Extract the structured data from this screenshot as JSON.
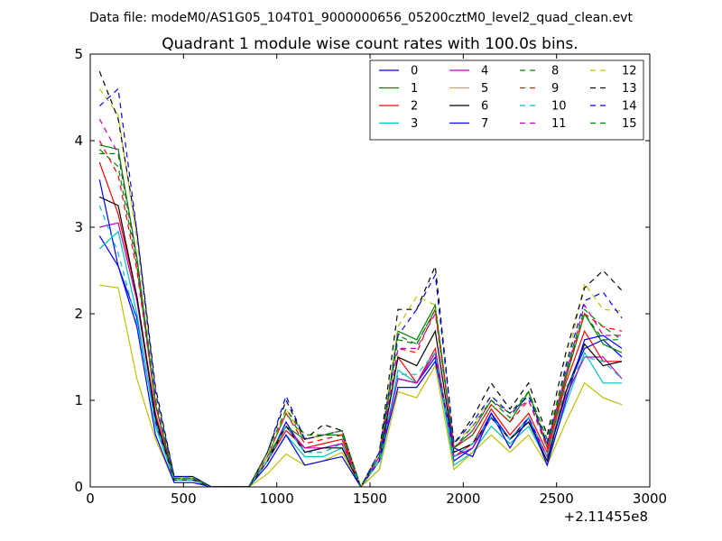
{
  "figure": {
    "suptitle": "Data file: modeM0/AS1G05_104T01_9000000656_05200cztM0_level2_quad_clean.evt"
  },
  "chart_data": {
    "type": "line",
    "title": "Quadrant 1 module wise count rates with 100.0s bins.",
    "xlabel": "",
    "ylabel": "",
    "x_offset_label": "+2.11455e8",
    "xlim": [
      0,
      3000
    ],
    "ylim": [
      0,
      5
    ],
    "xticks": [
      0,
      500,
      1000,
      1500,
      2000,
      2500,
      3000
    ],
    "yticks": [
      0,
      1,
      2,
      3,
      4,
      5
    ],
    "grid": false,
    "legend_position": "top-right",
    "legend_columns": 4,
    "x": [
      50,
      150,
      250,
      350,
      450,
      550,
      650,
      750,
      850,
      950,
      1050,
      1150,
      1250,
      1350,
      1450,
      1550,
      1650,
      1750,
      1850,
      1950,
      2050,
      2150,
      2250,
      2350,
      2450,
      2550,
      2650,
      2750,
      2850
    ],
    "series": [
      {
        "name": "0",
        "color": "#0000ff",
        "dash": false,
        "values": [
          2.9,
          2.55,
          1.95,
          0.75,
          0.08,
          0.08,
          0.0,
          0.0,
          0.0,
          0.3,
          0.75,
          0.4,
          0.45,
          0.5,
          0.0,
          0.35,
          1.25,
          1.2,
          1.5,
          0.3,
          0.45,
          0.85,
          0.55,
          0.8,
          0.35,
          1.1,
          1.6,
          1.7,
          1.5
        ]
      },
      {
        "name": "1",
        "color": "#008000",
        "dash": false,
        "values": [
          3.95,
          3.9,
          2.65,
          0.95,
          0.08,
          0.08,
          0.0,
          0.0,
          0.0,
          0.35,
          0.7,
          0.55,
          0.6,
          0.6,
          0.0,
          0.35,
          1.8,
          1.7,
          2.1,
          0.45,
          0.6,
          0.95,
          0.75,
          1.1,
          0.45,
          1.25,
          2.0,
          1.65,
          1.55
        ]
      },
      {
        "name": "2",
        "color": "#ff0000",
        "dash": false,
        "values": [
          3.75,
          3.15,
          2.2,
          0.85,
          0.08,
          0.08,
          0.0,
          0.0,
          0.0,
          0.3,
          0.65,
          0.45,
          0.5,
          0.55,
          0.0,
          0.3,
          1.5,
          1.2,
          1.6,
          0.35,
          0.5,
          0.9,
          0.6,
          0.85,
          0.4,
          1.2,
          1.8,
          1.45,
          1.45
        ]
      },
      {
        "name": "3",
        "color": "#00bfbf",
        "dash": false,
        "values": [
          2.75,
          2.95,
          2.0,
          0.7,
          0.08,
          0.08,
          0.0,
          0.0,
          0.0,
          0.25,
          0.6,
          0.35,
          0.35,
          0.45,
          0.0,
          0.2,
          1.35,
          1.2,
          1.55,
          0.25,
          0.4,
          0.7,
          0.5,
          0.7,
          0.3,
          0.95,
          1.55,
          1.2,
          1.2
        ]
      },
      {
        "name": "4",
        "color": "#bf00bf",
        "dash": false,
        "values": [
          3.0,
          3.05,
          2.15,
          0.8,
          0.08,
          0.08,
          0.0,
          0.0,
          0.0,
          0.3,
          0.7,
          0.45,
          0.45,
          0.5,
          0.0,
          0.3,
          1.25,
          1.2,
          1.55,
          0.35,
          0.45,
          0.8,
          0.55,
          0.75,
          0.35,
          1.05,
          1.5,
          1.5,
          1.25
        ]
      },
      {
        "name": "5",
        "color": "#bfbf00",
        "dash": false,
        "values": [
          2.33,
          2.3,
          1.25,
          0.55,
          0.05,
          0.05,
          0.0,
          0.0,
          0.0,
          0.15,
          0.38,
          0.25,
          0.3,
          0.4,
          0.0,
          0.2,
          1.1,
          1.03,
          1.4,
          0.2,
          0.4,
          0.6,
          0.4,
          0.6,
          0.25,
          0.75,
          1.2,
          1.03,
          0.95
        ]
      },
      {
        "name": "6",
        "color": "#000000",
        "dash": false,
        "values": [
          3.35,
          3.25,
          2.2,
          0.8,
          0.08,
          0.08,
          0.0,
          0.0,
          0.0,
          0.3,
          0.7,
          0.4,
          0.45,
          0.45,
          0.0,
          0.3,
          1.5,
          1.4,
          1.8,
          0.4,
          0.5,
          0.8,
          0.55,
          0.75,
          0.3,
          1.1,
          1.65,
          1.4,
          1.45
        ]
      },
      {
        "name": "7",
        "color": "#0000ff",
        "dash": false,
        "values": [
          3.55,
          2.55,
          1.85,
          0.6,
          0.05,
          0.05,
          0.0,
          0.0,
          0.0,
          0.25,
          0.6,
          0.25,
          0.3,
          0.35,
          0.0,
          0.3,
          1.15,
          1.15,
          1.45,
          0.45,
          0.35,
          0.85,
          0.45,
          0.8,
          0.25,
          1.0,
          1.7,
          1.75,
          1.6
        ]
      },
      {
        "name": "8",
        "color": "#008000",
        "dash": true,
        "values": [
          3.9,
          3.7,
          2.55,
          0.95,
          0.1,
          0.1,
          0.0,
          0.0,
          0.0,
          0.35,
          0.85,
          0.55,
          0.6,
          0.65,
          0.0,
          0.35,
          1.75,
          1.65,
          2.05,
          0.45,
          0.65,
          1.0,
          0.8,
          1.1,
          0.5,
          1.3,
          2.0,
          1.7,
          1.7
        ]
      },
      {
        "name": "9",
        "color": "#ff0000",
        "dash": true,
        "values": [
          4.0,
          3.6,
          2.5,
          0.95,
          0.1,
          0.1,
          0.0,
          0.0,
          0.0,
          0.35,
          0.85,
          0.5,
          0.55,
          0.6,
          0.0,
          0.35,
          1.6,
          1.55,
          2.05,
          0.45,
          0.6,
          0.95,
          0.75,
          1.0,
          0.45,
          1.3,
          2.0,
          1.85,
          1.8
        ]
      },
      {
        "name": "10",
        "color": "#00bfbf",
        "dash": true,
        "values": [
          3.25,
          2.7,
          1.9,
          0.75,
          0.08,
          0.08,
          0.0,
          0.0,
          0.0,
          0.3,
          0.7,
          0.4,
          0.4,
          0.5,
          0.0,
          0.3,
          1.3,
          1.3,
          1.55,
          0.35,
          0.5,
          0.8,
          0.55,
          0.8,
          0.35,
          1.15,
          1.5,
          1.45,
          1.25
        ]
      },
      {
        "name": "11",
        "color": "#bf00bf",
        "dash": true,
        "values": [
          4.25,
          3.85,
          2.6,
          0.95,
          0.1,
          0.1,
          0.0,
          0.0,
          0.0,
          0.35,
          0.9,
          0.55,
          0.6,
          0.65,
          0.0,
          0.35,
          1.6,
          1.6,
          2.0,
          0.45,
          0.65,
          1.0,
          0.85,
          1.0,
          0.5,
          1.3,
          2.1,
          1.75,
          1.75
        ]
      },
      {
        "name": "12",
        "color": "#bfbf00",
        "dash": true,
        "values": [
          4.6,
          4.3,
          2.85,
          1.05,
          0.1,
          0.1,
          0.0,
          0.0,
          0.0,
          0.35,
          0.9,
          0.55,
          0.6,
          0.65,
          0.0,
          0.4,
          1.85,
          2.2,
          2.1,
          0.5,
          0.7,
          1.05,
          0.85,
          1.1,
          0.55,
          1.4,
          2.35,
          2.05,
          2.03
        ]
      },
      {
        "name": "13",
        "color": "#000000",
        "dash": true,
        "values": [
          4.8,
          4.25,
          2.95,
          1.15,
          0.12,
          0.12,
          0.0,
          0.0,
          0.0,
          0.4,
          1.0,
          0.55,
          0.72,
          0.65,
          0.0,
          0.4,
          2.05,
          2.05,
          2.55,
          0.5,
          0.8,
          1.2,
          0.9,
          1.2,
          0.6,
          1.55,
          2.3,
          2.5,
          2.27
        ]
      },
      {
        "name": "14",
        "color": "#0000ff",
        "dash": true,
        "values": [
          4.4,
          4.6,
          2.95,
          1.1,
          0.12,
          0.12,
          0.0,
          0.0,
          0.0,
          0.4,
          1.05,
          0.55,
          0.6,
          0.65,
          0.0,
          0.4,
          1.75,
          2.05,
          2.45,
          0.5,
          0.75,
          1.05,
          0.85,
          1.05,
          0.5,
          1.4,
          2.15,
          2.25,
          1.95
        ]
      },
      {
        "name": "15",
        "color": "#008000",
        "dash": true,
        "values": [
          3.85,
          3.85,
          2.65,
          1.0,
          0.1,
          0.1,
          0.0,
          0.0,
          0.0,
          0.4,
          0.9,
          0.6,
          0.6,
          0.65,
          0.0,
          0.35,
          1.7,
          1.65,
          2.05,
          0.45,
          0.7,
          1.0,
          0.85,
          1.1,
          0.55,
          1.35,
          2.05,
          1.85,
          1.7
        ]
      }
    ]
  }
}
